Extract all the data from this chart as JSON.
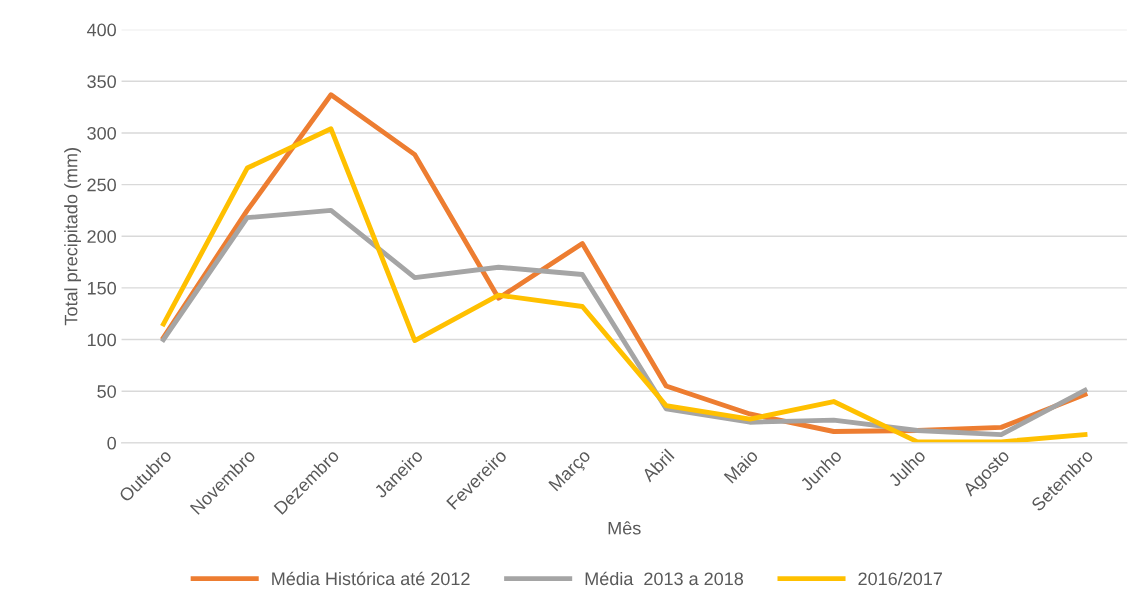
{
  "chart_data": {
    "type": "line",
    "xlabel": "Mês",
    "ylabel": "Total precipitado (mm)",
    "categories": [
      "Outubro",
      "Novembro",
      "Dezembro",
      "Janeiro",
      "Fevereiro",
      "Março",
      "Abril",
      "Maio",
      "Junho",
      "Julho",
      "Agosto",
      "Setembro"
    ],
    "series": [
      {
        "name": "Média Histórica até 2012",
        "color": "#ed7d31",
        "values": [
          102,
          225,
          337,
          279,
          140,
          193,
          55,
          28,
          11,
          12,
          15,
          47
        ]
      },
      {
        "name": "Média  2013 a 2018",
        "color": "#a5a5a5",
        "values": [
          100,
          218,
          225,
          160,
          170,
          163,
          33,
          20,
          22,
          12,
          8,
          51
        ]
      },
      {
        "name": "2016/2017",
        "color": "#ffc000",
        "values": [
          115,
          266,
          304,
          99,
          143,
          132,
          36,
          23,
          40,
          1,
          1,
          8
        ]
      }
    ],
    "ylim": [
      0,
      400
    ],
    "yticks": [
      0,
      50,
      100,
      150,
      200,
      250,
      300,
      350,
      400
    ],
    "grid": "y",
    "legend": "bottom",
    "marker": "none",
    "line_style": "solid"
  }
}
